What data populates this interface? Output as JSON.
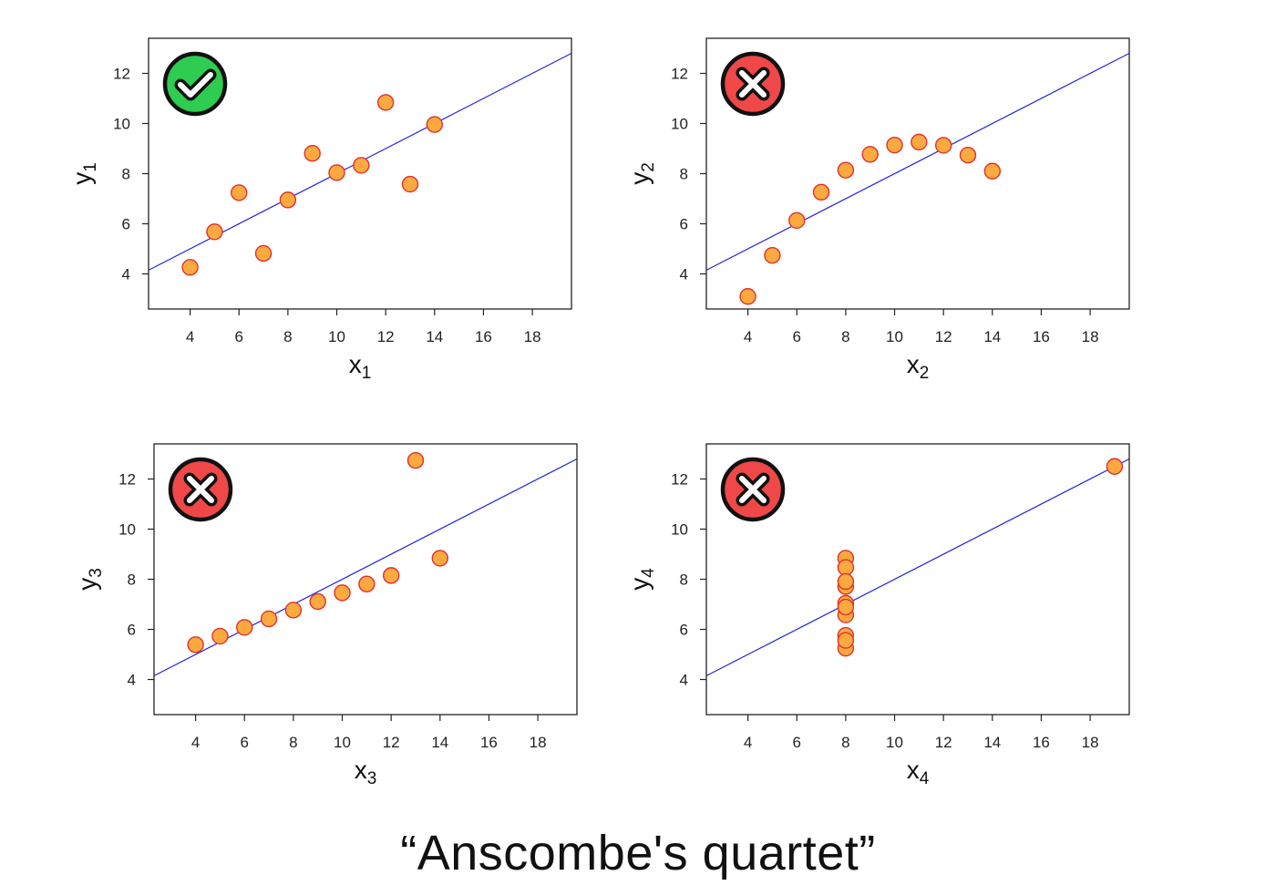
{
  "caption": "“Anscombe's quartet”",
  "colors": {
    "point_fill": "#fcaa3f",
    "point_stroke": "#e03030",
    "fit_line": "#2222dd",
    "badge_good": "#2ecc50",
    "badge_bad": "#f04848",
    "frame": "#222222"
  },
  "chart_data": [
    {
      "type": "scatter",
      "xlabel": "x",
      "xlabel_sub": "1",
      "ylabel": "y",
      "ylabel_sub": "1",
      "xlim": [
        2.3,
        19.6
      ],
      "ylim": [
        2.6,
        13.4
      ],
      "xticks": [
        4,
        6,
        8,
        10,
        12,
        14,
        16,
        18
      ],
      "yticks": [
        4,
        6,
        8,
        10,
        12
      ],
      "fit": {
        "intercept": 3.0,
        "slope": 0.5
      },
      "badge": {
        "status": "good",
        "icon": "check-icon"
      },
      "points": [
        [
          4,
          4.26
        ],
        [
          5,
          5.68
        ],
        [
          6,
          7.24
        ],
        [
          7,
          4.82
        ],
        [
          8,
          6.95
        ],
        [
          9,
          8.81
        ],
        [
          10,
          8.04
        ],
        [
          11,
          8.33
        ],
        [
          12,
          10.84
        ],
        [
          13,
          7.58
        ],
        [
          14,
          9.96
        ]
      ]
    },
    {
      "type": "scatter",
      "xlabel": "x",
      "xlabel_sub": "2",
      "ylabel": "y",
      "ylabel_sub": "2",
      "xlim": [
        2.3,
        19.6
      ],
      "ylim": [
        2.6,
        13.4
      ],
      "xticks": [
        4,
        6,
        8,
        10,
        12,
        14,
        16,
        18
      ],
      "yticks": [
        4,
        6,
        8,
        10,
        12
      ],
      "fit": {
        "intercept": 3.0,
        "slope": 0.5
      },
      "badge": {
        "status": "bad",
        "icon": "cross-icon"
      },
      "points": [
        [
          4,
          3.1
        ],
        [
          5,
          4.74
        ],
        [
          6,
          6.13
        ],
        [
          7,
          7.26
        ],
        [
          8,
          8.14
        ],
        [
          9,
          8.77
        ],
        [
          10,
          9.14
        ],
        [
          11,
          9.26
        ],
        [
          12,
          9.13
        ],
        [
          13,
          8.74
        ],
        [
          14,
          8.1
        ]
      ]
    },
    {
      "type": "scatter",
      "xlabel": "x",
      "xlabel_sub": "3",
      "ylabel": "y",
      "ylabel_sub": "3",
      "xlim": [
        2.3,
        19.6
      ],
      "ylim": [
        2.6,
        13.4
      ],
      "xticks": [
        4,
        6,
        8,
        10,
        12,
        14,
        16,
        18
      ],
      "yticks": [
        4,
        6,
        8,
        10,
        12
      ],
      "fit": {
        "intercept": 3.0,
        "slope": 0.5
      },
      "badge": {
        "status": "bad",
        "icon": "cross-icon"
      },
      "points": [
        [
          4,
          5.39
        ],
        [
          5,
          5.73
        ],
        [
          6,
          6.08
        ],
        [
          7,
          6.42
        ],
        [
          8,
          6.77
        ],
        [
          9,
          7.11
        ],
        [
          10,
          7.46
        ],
        [
          11,
          7.81
        ],
        [
          12,
          8.15
        ],
        [
          13,
          12.74
        ],
        [
          14,
          8.84
        ]
      ]
    },
    {
      "type": "scatter",
      "xlabel": "x",
      "xlabel_sub": "4",
      "ylabel": "y",
      "ylabel_sub": "4",
      "xlim": [
        2.3,
        19.6
      ],
      "ylim": [
        2.6,
        13.4
      ],
      "xticks": [
        4,
        6,
        8,
        10,
        12,
        14,
        16,
        18
      ],
      "yticks": [
        4,
        6,
        8,
        10,
        12
      ],
      "fit": {
        "intercept": 3.0,
        "slope": 0.5
      },
      "badge": {
        "status": "bad",
        "icon": "cross-icon"
      },
      "points": [
        [
          8,
          6.58
        ],
        [
          8,
          5.76
        ],
        [
          8,
          7.71
        ],
        [
          8,
          8.84
        ],
        [
          8,
          8.47
        ],
        [
          8,
          7.04
        ],
        [
          8,
          5.25
        ],
        [
          19,
          12.5
        ],
        [
          8,
          5.56
        ],
        [
          8,
          7.91
        ],
        [
          8,
          6.89
        ]
      ]
    }
  ]
}
